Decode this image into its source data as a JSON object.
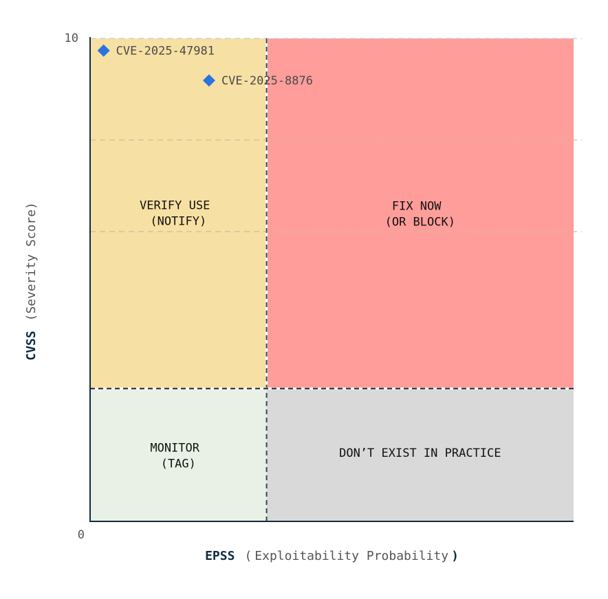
{
  "colors": {
    "verify": "#f7e0a3",
    "fix": "#fe9d9a",
    "monitor": "#e9f1e6",
    "none": "#d9d9d9",
    "axis": "#0f2a40",
    "point": "#2b74e0",
    "grid": "#d9b8a0"
  },
  "chart_data": {
    "type": "scatter",
    "title": "",
    "xlabel": {
      "bold": "EPSS",
      "open": "(",
      "rest": "Exploitability Probability",
      "close": ")"
    },
    "ylabel": {
      "bold": "CVSS",
      "rest": "(Severity Score)"
    },
    "y_ticks": {
      "top": "10",
      "bottom": "0"
    },
    "ylim": [
      0,
      10
    ],
    "xlim": [
      0,
      1
    ],
    "x_threshold": 0.365,
    "y_threshold": 2.75,
    "gridlines_y": [
      7.9,
      6.0,
      10.0
    ],
    "quadrants": [
      {
        "id": "verify",
        "lines": [
          "VERIFY USE",
          "(NOTIFY)"
        ]
      },
      {
        "id": "fix",
        "lines": [
          "FIX NOW",
          "(OR BLOCK)"
        ]
      },
      {
        "id": "monitor",
        "lines": [
          "MONITOR",
          "(TAG)"
        ]
      },
      {
        "id": "none",
        "lines": [
          "DON’T EXIST IN PRACTICE"
        ]
      }
    ],
    "points": [
      {
        "label": "CVE-2025-47981",
        "x": 0.028,
        "y": 9.75
      },
      {
        "label": "CVE-2025-8876",
        "x": 0.246,
        "y": 9.13
      }
    ]
  }
}
